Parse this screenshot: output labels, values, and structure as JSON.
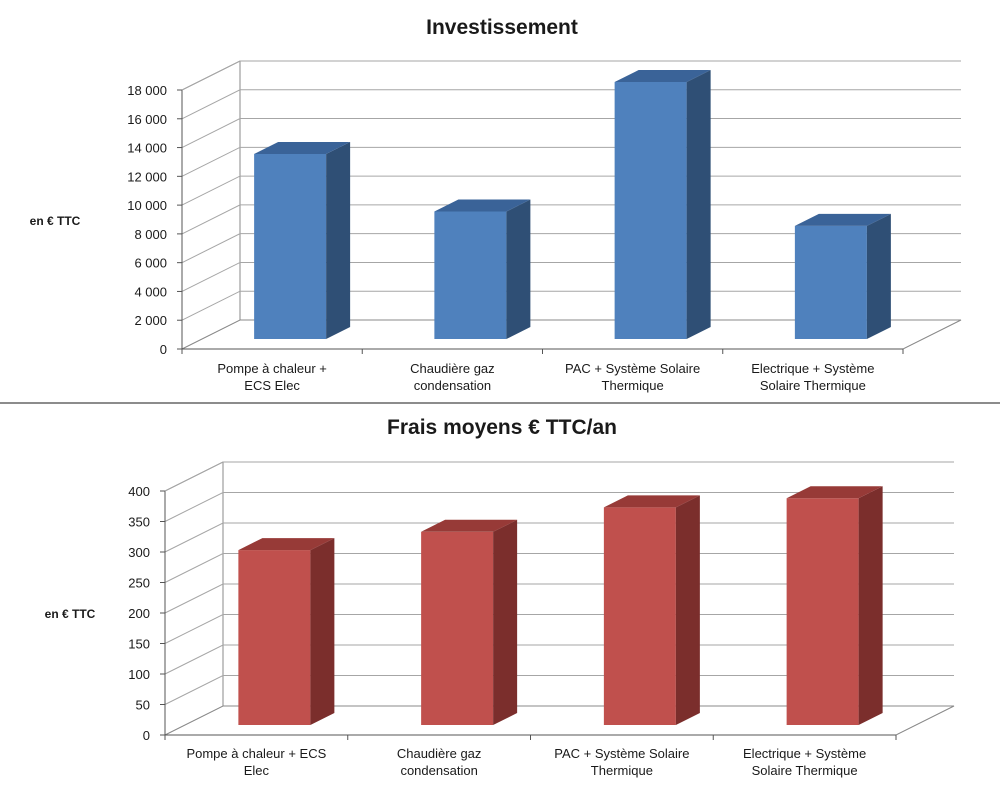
{
  "chart_data": [
    {
      "type": "bar",
      "title": "Investissement",
      "ylabel": "en € TTC",
      "xlabel": "",
      "categories": [
        "Pompe à chaleur + ECS Elec",
        "Chaudière gaz condensation",
        "PAC  + Système Solaire Thermique",
        "Electrique + Système Solaire Thermique"
      ],
      "category_lines": [
        [
          "Pompe à chaleur +",
          "ECS Elec"
        ],
        [
          "Chaudière gaz",
          "condensation"
        ],
        [
          "PAC  + Système Solaire",
          "Thermique"
        ],
        [
          "Electrique + Système",
          "Solaire Thermique"
        ]
      ],
      "values": [
        13000,
        9000,
        18000,
        8000
      ],
      "ylim": [
        0,
        18000
      ],
      "ticks": [
        0,
        2000,
        4000,
        6000,
        8000,
        10000,
        12000,
        14000,
        16000,
        18000
      ],
      "tick_labels": [
        "0",
        "2 000",
        "4 000",
        "6 000",
        "8 000",
        "10 000",
        "12 000",
        "14 000",
        "16 000",
        "18 000"
      ],
      "grid": true,
      "legend": "none",
      "colors": {
        "front": "#4f81bd",
        "side": "#2f4f75",
        "top": "#3a6398"
      }
    },
    {
      "type": "bar",
      "title": "Frais moyens € TTC/an",
      "ylabel": "en € TTC",
      "xlabel": "",
      "categories": [
        "Pompe à chaleur + ECS Elec",
        "Chaudière gaz condensation",
        "PAC  + Système Solaire Thermique",
        "Electrique + Système Solaire Thermique"
      ],
      "category_lines": [
        [
          "Pompe à chaleur + ECS",
          "Elec"
        ],
        [
          "Chaudière gaz",
          "condensation"
        ],
        [
          "PAC  + Système Solaire",
          "Thermique"
        ],
        [
          "Electrique + Système",
          "Solaire Thermique"
        ]
      ],
      "values": [
        290,
        320,
        360,
        375
      ],
      "ylim": [
        0,
        400
      ],
      "ticks": [
        0,
        50,
        100,
        150,
        200,
        250,
        300,
        350,
        400
      ],
      "tick_labels": [
        "0",
        "50",
        "100",
        "150",
        "200",
        "250",
        "300",
        "350",
        "400"
      ],
      "grid": true,
      "legend": "none",
      "colors": {
        "front": "#c0504d",
        "side": "#7b2e2c",
        "top": "#973a37"
      }
    }
  ]
}
